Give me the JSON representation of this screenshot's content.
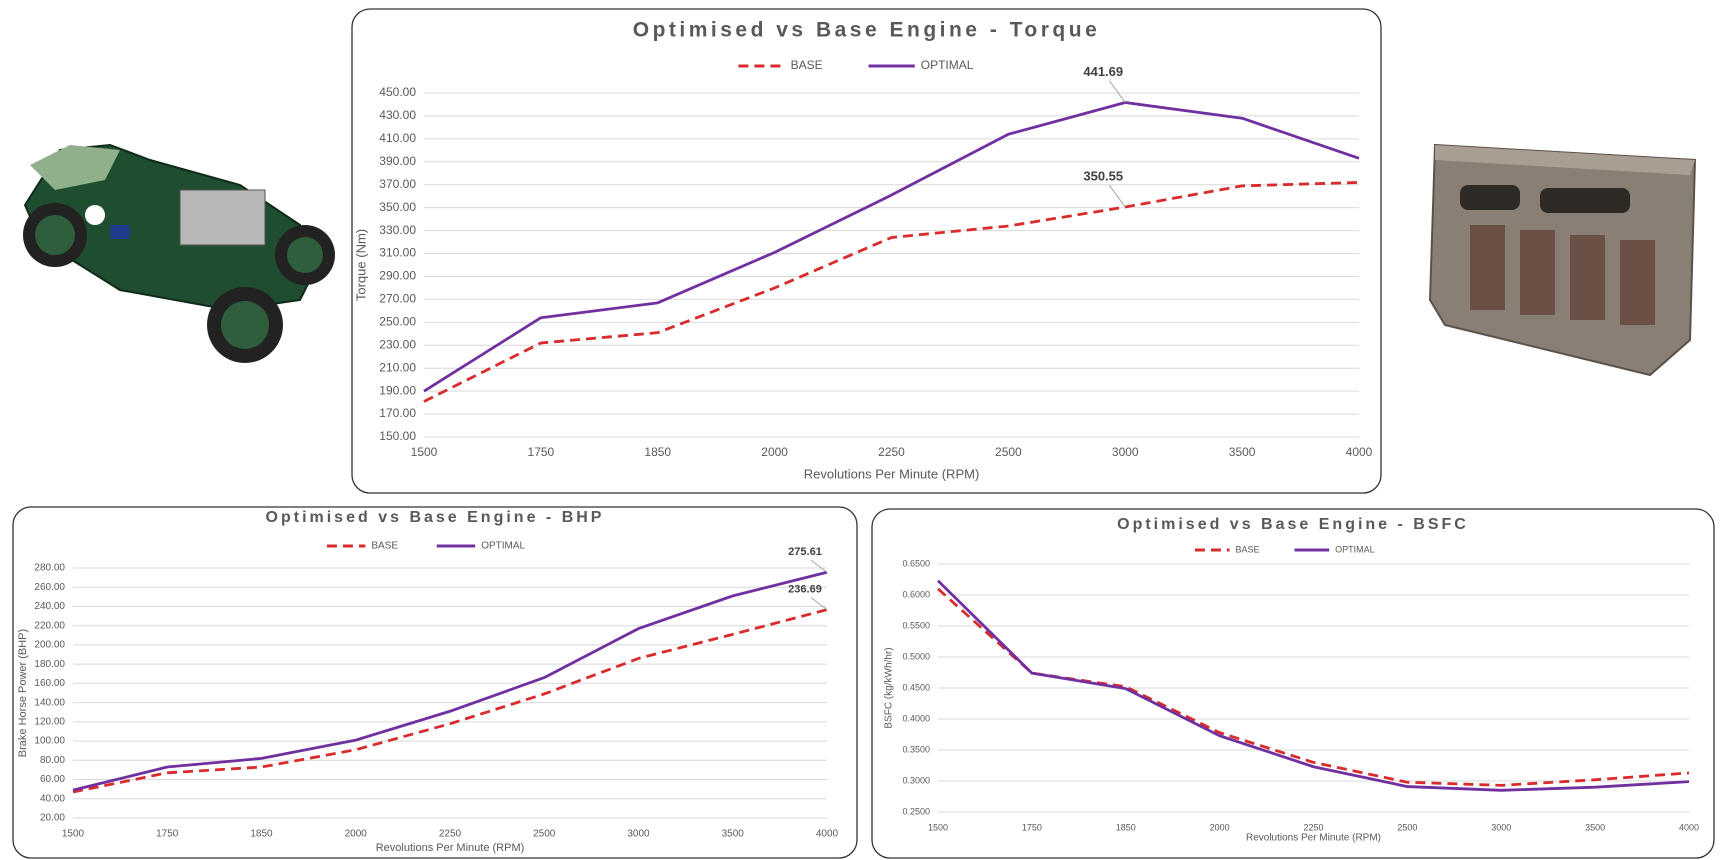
{
  "chart_data": [
    {
      "type": "line",
      "title": "Optimised vs Base Engine - Torque",
      "xlabel": "Revolutions Per Minute (RPM)",
      "ylabel": "Torque (Nm)",
      "categories": [
        "1500",
        "1750",
        "1850",
        "2000",
        "2250",
        "2500",
        "3000",
        "3500",
        "4000"
      ],
      "series": [
        {
          "name": "BASE",
          "color": "#d92b2b",
          "dashed": true,
          "values": [
            181,
            232,
            241,
            280,
            324,
            334,
            350.55,
            369,
            372
          ],
          "value_labels": [
            null,
            null,
            null,
            null,
            null,
            null,
            "350.55",
            null,
            null
          ]
        },
        {
          "name": "OPTIMAL",
          "color": "#7030a0",
          "dashed": false,
          "values": [
            190,
            254,
            267,
            311,
            361,
            414,
            441.69,
            428,
            393
          ],
          "value_labels": [
            null,
            null,
            null,
            null,
            null,
            null,
            "441.69",
            null,
            null
          ]
        }
      ],
      "ylim": [
        150,
        450
      ],
      "yticks": [
        {
          "value": 150,
          "label": "150.00"
        },
        {
          "value": 170,
          "label": "170.00"
        },
        {
          "value": 190,
          "label": "190.00"
        },
        {
          "value": 210,
          "label": "210.00"
        },
        {
          "value": 230,
          "label": "230.00"
        },
        {
          "value": 250,
          "label": "250.00"
        },
        {
          "value": 270,
          "label": "270.00"
        },
        {
          "value": 290,
          "label": "290.00"
        },
        {
          "value": 310,
          "label": "310.00"
        },
        {
          "value": 330,
          "label": "330.00"
        },
        {
          "value": 350,
          "label": "350.00"
        },
        {
          "value": 370,
          "label": "370.00"
        },
        {
          "value": 390,
          "label": "390.00"
        },
        {
          "value": 410,
          "label": "410.00"
        },
        {
          "value": 430,
          "label": "430.00"
        },
        {
          "value": 450,
          "label": "450.00"
        }
      ],
      "grid": true,
      "legend": "top"
    },
    {
      "type": "line",
      "title": "Optimised vs Base Engine - BHP",
      "xlabel": "Revolutions Per Minute (RPM)",
      "ylabel": "Brake Horse Power (BHP)",
      "categories": [
        "1500",
        "1750",
        "1850",
        "2000",
        "2250",
        "2500",
        "3000",
        "3500",
        "4000"
      ],
      "series": [
        {
          "name": "BASE",
          "color": "#d92b2b",
          "dashed": true,
          "values": [
            47,
            67,
            73,
            91,
            118,
            149,
            186,
            211,
            236.69
          ],
          "value_labels": [
            null,
            null,
            null,
            null,
            null,
            null,
            null,
            null,
            "236.69"
          ]
        },
        {
          "name": "OPTIMAL",
          "color": "#7030a0",
          "dashed": false,
          "values": [
            49,
            73,
            82,
            101,
            131,
            166,
            217,
            251,
            275.61
          ],
          "value_labels": [
            null,
            null,
            null,
            null,
            null,
            null,
            null,
            null,
            "275.61"
          ]
        }
      ],
      "ylim": [
        20,
        280
      ],
      "yticks": [
        {
          "value": 20,
          "label": "20.00"
        },
        {
          "value": 40,
          "label": "40.00"
        },
        {
          "value": 60,
          "label": "60.00"
        },
        {
          "value": 80,
          "label": "80.00"
        },
        {
          "value": 100,
          "label": "100.00"
        },
        {
          "value": 120,
          "label": "120.00"
        },
        {
          "value": 140,
          "label": "140.00"
        },
        {
          "value": 160,
          "label": "160.00"
        },
        {
          "value": 180,
          "label": "180.00"
        },
        {
          "value": 200,
          "label": "200.00"
        },
        {
          "value": 220,
          "label": "220.00"
        },
        {
          "value": 240,
          "label": "240.00"
        },
        {
          "value": 260,
          "label": "260.00"
        },
        {
          "value": 280,
          "label": "280.00"
        }
      ],
      "grid": true,
      "legend": "top"
    },
    {
      "type": "line",
      "title": "Optimised vs Base Engine - BSFC",
      "xlabel": "Revolutions Per Minute (RPM)",
      "ylabel": "BSFC (kg/kWh/hr)",
      "categories": [
        "1500",
        "1750",
        "1850",
        "2000",
        "2250",
        "2500",
        "3000",
        "3500",
        "4000"
      ],
      "series": [
        {
          "name": "BASE",
          "color": "#d92b2b",
          "dashed": true,
          "values": [
            0.61,
            0.474,
            0.452,
            0.378,
            0.33,
            0.298,
            0.293,
            0.302,
            0.313
          ]
        },
        {
          "name": "OPTIMAL",
          "color": "#7030a0",
          "dashed": false,
          "values": [
            0.623,
            0.474,
            0.449,
            0.373,
            0.323,
            0.291,
            0.285,
            0.29,
            0.299
          ]
        }
      ],
      "ylim": [
        0.25,
        0.65
      ],
      "yticks": [
        {
          "value": 0.25,
          "label": "0.2500"
        },
        {
          "value": 0.3,
          "label": "0.3000"
        },
        {
          "value": 0.35,
          "label": "0.3500"
        },
        {
          "value": 0.4,
          "label": "0.4000"
        },
        {
          "value": 0.45,
          "label": "0.4500"
        },
        {
          "value": 0.5,
          "label": "0.5000"
        },
        {
          "value": 0.55,
          "label": "0.5500"
        },
        {
          "value": 0.6,
          "label": "0.6000"
        },
        {
          "value": 0.65,
          "label": "0.6500"
        }
      ],
      "grid": true,
      "legend": "top"
    }
  ]
}
